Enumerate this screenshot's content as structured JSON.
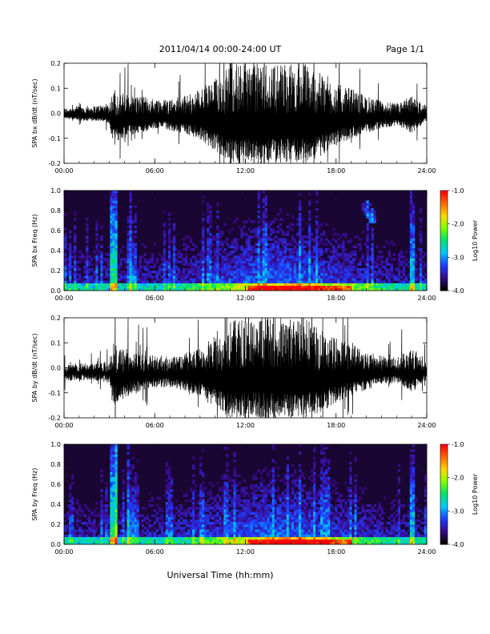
{
  "header": {
    "date_range": "2011/04/14  00:00-24:00 UT",
    "page": "Page 1/1"
  },
  "x_axis": {
    "label": "Universal Time (hh:mm)",
    "ticks": [
      "00:00",
      "06:00",
      "12:00",
      "18:00",
      "24:00"
    ],
    "range_hours": [
      0,
      24
    ]
  },
  "colorbar": {
    "label": "Log10 Power",
    "ticks": [
      "-1.0",
      "-2.0",
      "-3.0",
      "-4.0"
    ],
    "range": [
      -4.0,
      -1.0
    ],
    "colors": [
      "#000000",
      "#3a0a8c",
      "#1f3dff",
      "#00c8ff",
      "#00e070",
      "#7cff00",
      "#ffd800",
      "#ff6a00",
      "#ff0000"
    ]
  },
  "chart_data": [
    {
      "type": "line",
      "ylabel": "SPA bx dB/dt (nT/sec)",
      "ylim": [
        -0.2,
        0.2
      ],
      "yticks": [
        "0.2",
        "0.1",
        "0.0",
        "-0.1",
        "-0.2"
      ],
      "x_hours": [
        0,
        1,
        2,
        3,
        3.2,
        4,
        5,
        6,
        7,
        8,
        9,
        10,
        11,
        12,
        13,
        14,
        15,
        16,
        17,
        18,
        19,
        20,
        21,
        22,
        23,
        24
      ],
      "envelope_upper": [
        0.02,
        0.03,
        0.03,
        0.04,
        0.09,
        0.08,
        0.07,
        0.06,
        0.06,
        0.07,
        0.1,
        0.14,
        0.2,
        0.2,
        0.2,
        0.2,
        0.2,
        0.2,
        0.16,
        0.12,
        0.1,
        0.07,
        0.05,
        0.04,
        0.07,
        0.03
      ],
      "envelope_lower": [
        -0.02,
        -0.03,
        -0.03,
        -0.04,
        -0.12,
        -0.1,
        -0.08,
        -0.06,
        -0.07,
        -0.08,
        -0.11,
        -0.15,
        -0.2,
        -0.2,
        -0.2,
        -0.2,
        -0.2,
        -0.2,
        -0.17,
        -0.13,
        -0.1,
        -0.08,
        -0.06,
        -0.05,
        -0.08,
        -0.03
      ]
    },
    {
      "type": "heatmap",
      "ylabel": "SPA bx Freq (Hz)",
      "ylim": [
        0,
        1.0
      ],
      "yticks": [
        "1.0",
        "0.8",
        "0.6",
        "0.4",
        "0.2",
        "0.0"
      ],
      "value_range": [
        -4.0,
        -1.0
      ]
    },
    {
      "type": "line",
      "ylabel": "SPA by dB/dt (nT/sec)",
      "ylim": [
        -0.2,
        0.2
      ],
      "yticks": [
        "0.2",
        "0.1",
        "0.0",
        "-0.1",
        "-0.2"
      ],
      "x_hours": [
        0,
        1,
        2,
        3,
        3.2,
        4,
        5,
        6,
        7,
        8,
        9,
        10,
        11,
        12,
        13,
        14,
        15,
        16,
        17,
        18,
        19,
        20,
        21,
        22,
        23,
        24
      ],
      "envelope_upper": [
        0.01,
        0.02,
        0.02,
        0.03,
        0.1,
        0.08,
        0.06,
        0.05,
        0.05,
        0.06,
        0.08,
        0.13,
        0.19,
        0.2,
        0.2,
        0.2,
        0.2,
        0.2,
        0.15,
        0.12,
        0.1,
        0.07,
        0.05,
        0.04,
        0.09,
        0.02
      ],
      "envelope_lower": [
        -0.05,
        -0.05,
        -0.05,
        -0.06,
        -0.15,
        -0.12,
        -0.09,
        -0.08,
        -0.08,
        -0.09,
        -0.12,
        -0.16,
        -0.2,
        -0.2,
        -0.2,
        -0.2,
        -0.2,
        -0.2,
        -0.18,
        -0.14,
        -0.11,
        -0.09,
        -0.07,
        -0.06,
        -0.1,
        -0.05
      ]
    },
    {
      "type": "heatmap",
      "ylabel": "SPA by Freq (Hz)",
      "ylim": [
        0,
        1.0
      ],
      "yticks": [
        "1.0",
        "0.8",
        "0.6",
        "0.4",
        "0.2",
        "0.0"
      ],
      "value_range": [
        -4.0,
        -1.0
      ]
    }
  ]
}
